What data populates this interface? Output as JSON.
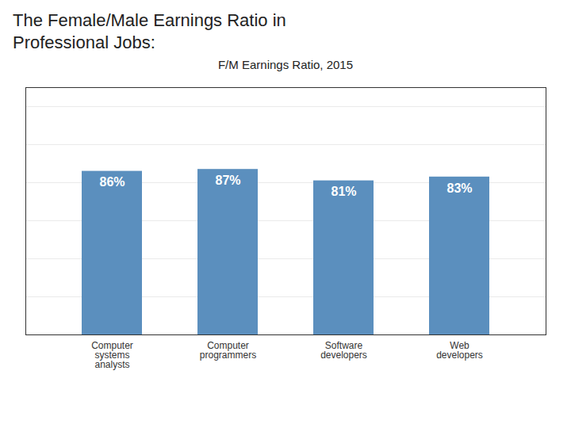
{
  "chart_data": {
    "type": "bar",
    "title": "The Female/Male Earnings Ratio in\nProfessional Jobs:",
    "subtitle": "F/M Earnings Ratio, 2015",
    "categories": [
      "Computer\nsystems\nanalysts",
      "Computer\nprogrammers",
      "Software\ndevelopers",
      "Web\ndevelopers"
    ],
    "values": [
      86,
      87,
      81,
      83
    ],
    "value_labels": [
      "86%",
      "87%",
      "81%",
      "83%"
    ],
    "data_labels": true,
    "color": "#5b8fbe",
    "ylim": [
      0,
      130
    ],
    "yticks": [
      0,
      20,
      40,
      60,
      80,
      100,
      120
    ],
    "grid": true,
    "tick_labels": "x"
  }
}
